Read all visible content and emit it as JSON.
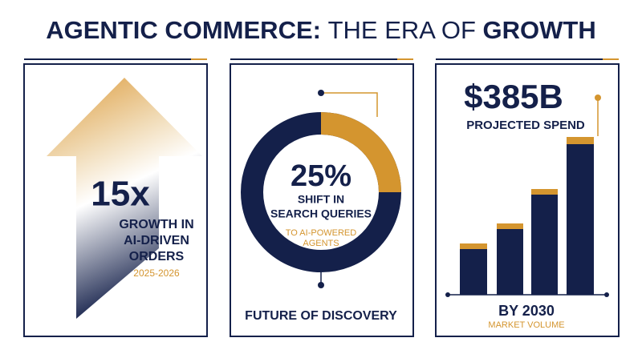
{
  "header": {
    "title_part1": "AGENTIC COMMERCE:",
    "title_part2": "THE ERA OF",
    "title_part3": "GROWTH"
  },
  "panels": [
    {
      "headline": "15x",
      "lines": [
        "GROWTH IN",
        "AI-DRIVEN",
        "ORDERS"
      ],
      "note": "2025-2026"
    },
    {
      "share": {
        "value": 25,
        "label": "25%"
      },
      "lines": [
        "SHIFT IN",
        "SEARCH QUERIES"
      ],
      "note_lines": [
        "TO AI-POWERED",
        "AGENTS"
      ],
      "footer": "FUTURE OF DISCOVERY"
    },
    {
      "headline": "$385B",
      "subhead": "PROJECTED SPEND",
      "footer": "BY 2030",
      "note": "MARKET VOLUME"
    }
  ]
}
